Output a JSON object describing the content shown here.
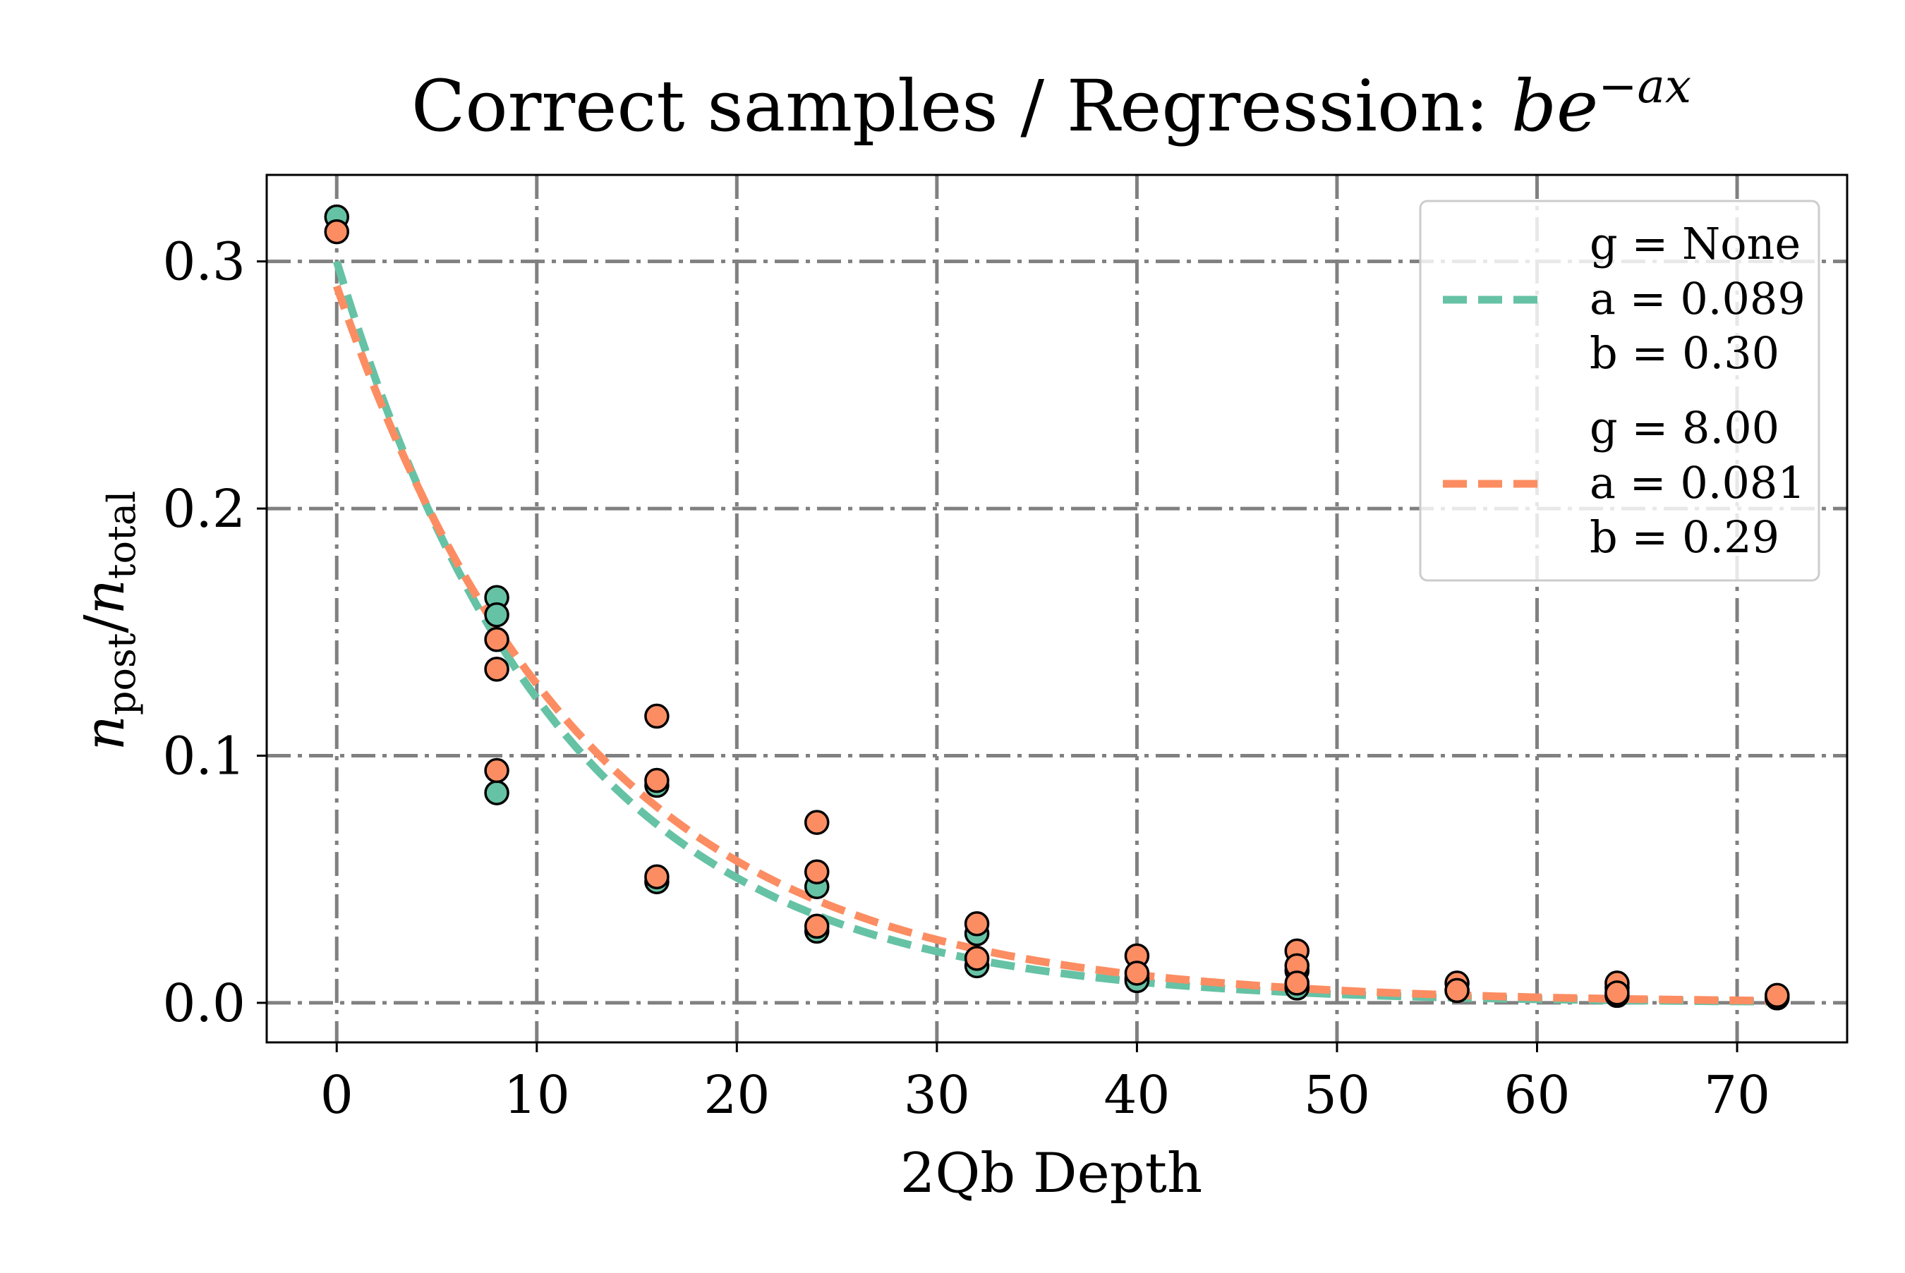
{
  "chart_data": {
    "type": "scatter",
    "title_prefix": "Correct samples / Regression: ",
    "title_formula": {
      "base": "be",
      "exponent": "−ax"
    },
    "xlabel": "2Qb Depth",
    "ylabel": {
      "base": "n",
      "numer_sub": "post",
      "slash": "/",
      "denom_sub": "total"
    },
    "xlim": [
      -3.5,
      75.5
    ],
    "ylim": [
      -0.016,
      0.335
    ],
    "x_ticks": [
      0,
      10,
      20,
      30,
      40,
      50,
      60,
      70
    ],
    "x_tick_labels": [
      "0",
      "10",
      "20",
      "30",
      "40",
      "50",
      "60",
      "70"
    ],
    "y_ticks": [
      0.0,
      0.1,
      0.2,
      0.3
    ],
    "y_tick_labels": [
      "0.0",
      "0.1",
      "0.2",
      "0.3"
    ],
    "grid": true,
    "legend_position": "top-right",
    "series": [
      {
        "name": "g = None",
        "color": "#66c2a5",
        "legend_lines": [
          "g = None",
          "a = 0.089",
          "b = 0.30"
        ],
        "fit": {
          "a": 0.089,
          "b": 0.3
        },
        "points": [
          [
            0,
            0.318
          ],
          [
            8,
            0.164
          ],
          [
            8,
            0.157
          ],
          [
            8,
            0.085
          ],
          [
            16,
            0.088
          ],
          [
            16,
            0.049
          ],
          [
            24,
            0.047
          ],
          [
            24,
            0.029
          ],
          [
            32,
            0.028
          ],
          [
            32,
            0.015
          ],
          [
            40,
            0.01
          ],
          [
            40,
            0.009
          ],
          [
            48,
            0.013
          ],
          [
            48,
            0.006
          ],
          [
            56,
            0.005
          ],
          [
            64,
            0.006
          ],
          [
            64,
            0.003
          ],
          [
            72,
            0.002
          ]
        ]
      },
      {
        "name": "g = 8.00",
        "color": "#fc8d62",
        "legend_lines": [
          "g = 8.00",
          "a = 0.081",
          "b = 0.29"
        ],
        "fit": {
          "a": 0.081,
          "b": 0.29
        },
        "points": [
          [
            0,
            0.312
          ],
          [
            8,
            0.147
          ],
          [
            8,
            0.135
          ],
          [
            8,
            0.094
          ],
          [
            16,
            0.116
          ],
          [
            16,
            0.09
          ],
          [
            16,
            0.051
          ],
          [
            24,
            0.073
          ],
          [
            24,
            0.053
          ],
          [
            24,
            0.031
          ],
          [
            32,
            0.032
          ],
          [
            32,
            0.018
          ],
          [
            40,
            0.019
          ],
          [
            40,
            0.012
          ],
          [
            48,
            0.021
          ],
          [
            48,
            0.015
          ],
          [
            48,
            0.008
          ],
          [
            56,
            0.008
          ],
          [
            56,
            0.005
          ],
          [
            64,
            0.008
          ],
          [
            64,
            0.004
          ],
          [
            72,
            0.003
          ]
        ]
      }
    ]
  }
}
